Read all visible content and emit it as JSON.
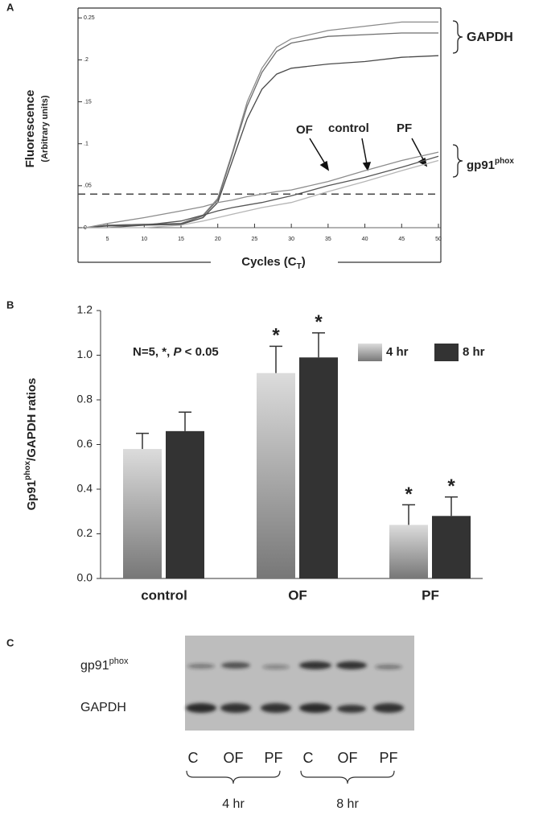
{
  "chart_data": [
    {
      "type": "line",
      "panel": "A",
      "ylabel": "Fluorescence",
      "ylabel2": "(Arbitrary units)",
      "xlabel": "Cycles (C",
      "xlabel_sub": "T",
      "xlabel_end": ")",
      "x": [
        2,
        5,
        10,
        15,
        18,
        20,
        22,
        24,
        26,
        28,
        30,
        35,
        40,
        45,
        50
      ],
      "series": [
        {
          "color": "#8a8a8a",
          "values": [
            0,
            0.003,
            0.004,
            0.005,
            0.015,
            0.035,
            0.09,
            0.15,
            0.19,
            0.215,
            0.225,
            0.235,
            0.24,
            0.245,
            0.245
          ]
        },
        {
          "color": "#6e6e6e",
          "values": [
            0,
            0.003,
            0.004,
            0.005,
            0.014,
            0.033,
            0.088,
            0.145,
            0.185,
            0.21,
            0.22,
            0.228,
            0.23,
            0.232,
            0.232
          ]
        },
        {
          "color": "#4a4a4a",
          "values": [
            0,
            0.002,
            0.003,
            0.004,
            0.012,
            0.03,
            0.08,
            0.13,
            0.165,
            0.183,
            0.19,
            0.195,
            0.198,
            0.203,
            0.205
          ]
        },
        {
          "color": "#8c8c8c",
          "values": [
            0,
            0.005,
            0.012,
            0.02,
            0.025,
            0.03,
            0.033,
            0.037,
            0.04,
            0.043,
            0.045,
            0.055,
            0.068,
            0.08,
            0.09
          ]
        },
        {
          "color": "#555555",
          "values": [
            0,
            0,
            0.003,
            0.008,
            0.015,
            0.02,
            0.024,
            0.027,
            0.03,
            0.034,
            0.038,
            0.05,
            0.06,
            0.072,
            0.085
          ]
        },
        {
          "color": "#b5b5b5",
          "values": [
            0,
            0,
            0,
            0.003,
            0.008,
            0.012,
            0.016,
            0.02,
            0.024,
            0.027,
            0.03,
            0.043,
            0.055,
            0.068,
            0.08
          ]
        }
      ],
      "xlim": [
        1,
        50
      ],
      "ylim": [
        0,
        0.255
      ],
      "xticks": [
        5,
        10,
        15,
        20,
        25,
        30,
        35,
        40,
        45,
        50
      ],
      "yticks": [
        0,
        {
          "value": 0.05,
          "label": ".05"
        },
        {
          "value": 0.1,
          "label": ".1"
        },
        {
          "value": 0.15,
          "label": ".15"
        },
        {
          "value": 0.2,
          "label": ".2"
        },
        {
          "value": 0.25,
          "label": "0.25"
        }
      ],
      "threshold": 0.04,
      "labels": {
        "gapdh": "GAPDH",
        "gp91": "gp91",
        "gp91_sup": "phox",
        "of": "OF",
        "control": "control",
        "pf": "PF"
      }
    },
    {
      "type": "bar",
      "panel": "B",
      "ylabel": "Gp91",
      "ylabel_sup": "phox",
      "ylabel_end": "/GAPDH ratios",
      "note": "N=5, *, ",
      "note_italic": "P",
      "note_end": " < 0.05",
      "categories": [
        "control",
        "OF",
        "PF"
      ],
      "series": [
        {
          "name": "4 hr",
          "color": "#dcdcdc",
          "values": [
            0.58,
            0.92,
            0.24
          ],
          "errors": [
            0.07,
            0.12,
            0.09
          ],
          "marks": [
            null,
            "*",
            "*"
          ]
        },
        {
          "name": "8 hr",
          "color": "#333333",
          "values": [
            0.66,
            0.99,
            0.28
          ],
          "errors": [
            0.085,
            0.11,
            0.085
          ],
          "marks": [
            null,
            "*",
            "*"
          ]
        }
      ],
      "ylim": [
        0,
        1.2
      ],
      "yticks": [
        {
          "value": 0,
          "label": "0.0"
        },
        {
          "value": 0.2,
          "label": "0.2"
        },
        {
          "value": 0.4,
          "label": "0.4"
        },
        {
          "value": 0.6,
          "label": "0.6"
        },
        {
          "value": 0.8,
          "label": "0.8"
        },
        {
          "value": 1,
          "label": "1.0"
        },
        {
          "value": 1.2,
          "label": "1.2"
        }
      ]
    }
  ],
  "panel_c": {
    "label": "C",
    "row1": "gp91",
    "row1_sup": "phox",
    "row2": "GAPDH",
    "lanes": [
      "C",
      "OF",
      "PF",
      "C",
      "OF",
      "PF"
    ],
    "groups": [
      "4 hr",
      "8 hr"
    ]
  }
}
